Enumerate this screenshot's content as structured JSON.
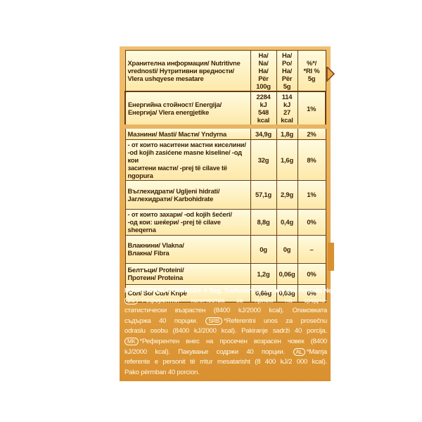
{
  "table": {
    "header": [
      "Хранителна информация/ Nutritivne\nvrednosti/ Нутритивни вредности/\nVlera ushqyese mesatare",
      "На/ Na/\nНа/ Për\n100g",
      "На/ Po/\nНа/ Për\n5g",
      "%*/\n*RI %\n5g"
    ],
    "rows": [
      [
        "Енергийна стойност/ Energija/\nЕнергија/ Vlera energjetike",
        "2284 kJ\n548 kcal",
        "114 kJ\n27 kcal",
        "1%"
      ],
      [
        "Мазнини/ Masti/ Масти/ Yndyrna",
        "34,9g",
        "1,8g",
        "2%"
      ],
      [
        "- от които наситени мастни киселини/\n-od kojih zasićene masne kiseline/ -од кои\nзаситени масти/ -prej të cilave të ngopura",
        "32g",
        "1,6g",
        "8%"
      ],
      [
        "Въглехидрати/ Ugljeni hidrati/\nЈаглехидрати/ Karbohidrate",
        "57,1g",
        "2,9g",
        "1%"
      ],
      [
        "- от които захари/ -od kojih šećeri/\n-од кои: шеќери/ -prej të cilave sheqerna",
        "8,8g",
        "0,4g",
        "0%"
      ],
      [
        "Влакнини/ Vlakna/\nВлакна/ Fibra",
        "0g",
        "0g",
        "–"
      ],
      [
        "Белтъци/ Proteini/\nПротеин/ Proteina",
        "1,2g",
        "0,06g",
        "0%"
      ],
      [
        "Сол/ So/ Сол/ Kripë",
        "0,66g",
        "0,03g",
        "0%"
      ]
    ]
  },
  "footer": {
    "lines": [
      [
        "NUTRITIONAL COMPASS® ® Reg. Trademark of Société des Produits Nestlé S.A."
      ],
      [
        {
          "badge": "BG"
        },
        "*Референтни количества за прием на средно-"
      ],
      [
        "статистически възрастен (8400 kJ/2000 kcal). Опаковката"
      ],
      [
        "съдържа 40 порции. ",
        {
          "badge": "SRB"
        },
        "*Referentni unos za prosečnu"
      ],
      [
        "odraslu osobu (8400 kJ/2000 kcal). Pakiranje sadrži 40 porcija."
      ],
      [
        {
          "badge": "MK"
        },
        "*Референтен внес на просечен возрасен човек (8400"
      ],
      [
        "kJ/2000 kcal). Пакување содржи 40 порции. ",
        {
          "badge": "AL"
        },
        "*Marrja"
      ],
      [
        "referente e personit të rritur mesatarisht (8 400 kJ/2 000 kcal)."
      ],
      [
        "Pako përmban 40 porcion."
      ]
    ]
  }
}
